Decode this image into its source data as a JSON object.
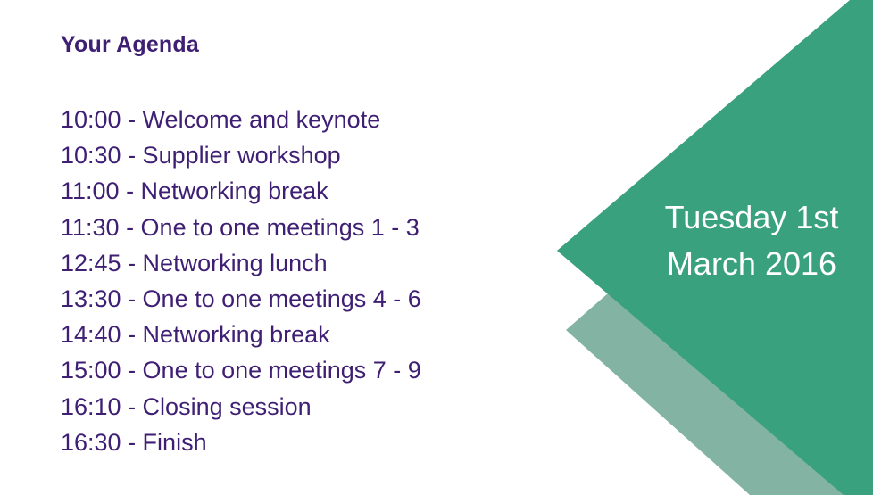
{
  "title": "Your Agenda",
  "agenda": [
    "10:00 - Welcome and keynote",
    "10:30 - Supplier workshop",
    "11:00 - Networking break",
    "11:30 - One to one meetings 1 - 3",
    "12:45 - Networking lunch",
    "13:30 - One to one meetings 4 - 6",
    "14:40 - Networking break",
    "15:00 - One to one meetings 7 - 9",
    "16:10 - Closing session",
    "16:30 - Finish"
  ],
  "date": {
    "line1": "Tuesday 1st",
    "line2": "March 2016"
  },
  "colors": {
    "text": "#3e1f73",
    "main_triangle": "#3aa17f",
    "back_triangle": "#82b3a3",
    "date_text": "#ffffff"
  }
}
